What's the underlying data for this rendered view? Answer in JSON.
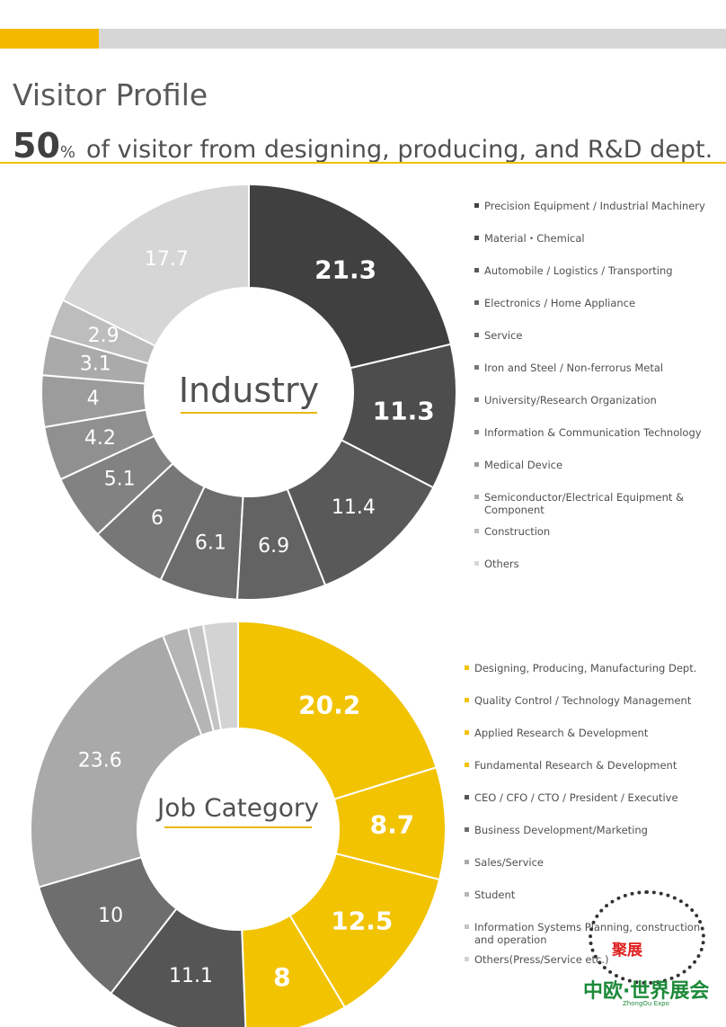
{
  "header": {
    "title": "Visitor Profile",
    "headline_big": "50",
    "headline_pct": "%",
    "headline_rest": "of visitor from designing, producing, and R&D dept."
  },
  "colors": {
    "accent": "#f5b800",
    "rule": "#f0c000",
    "gray_bar": "#d6d6d6"
  },
  "chart_data": [
    {
      "type": "pie",
      "variant": "donut",
      "center_label": "Industry",
      "categories": [
        "Precision Equipment / Industrial Machinery",
        "Material・Chemical",
        "Automobile / Logistics / Transporting",
        "Electronics / Home Appliance",
        "Service",
        "Iron and Steel / Non-ferrorus Metal",
        "University/Research Organization",
        "Information & Communication Technology",
        "Medical Device",
        "Semiconductor/Electrical Equipment & Component",
        "Construction",
        "Others"
      ],
      "values": [
        21.3,
        11.3,
        11.4,
        6.9,
        6.1,
        6,
        5.1,
        4.2,
        4,
        3.1,
        2.9,
        17.7
      ],
      "labels": [
        "21.3",
        "11.3",
        "11.4",
        "6.9",
        "6.1",
        "6",
        "5.1",
        "4.2",
        "4",
        "3.1",
        "2.9",
        "17.7"
      ],
      "colors": [
        "#404040",
        "#4d4d4d",
        "#595959",
        "#636363",
        "#6c6c6c",
        "#777777",
        "#828282",
        "#909090",
        "#9c9c9c",
        "#aaaaaa",
        "#bdbdbd",
        "#d6d6d6"
      ],
      "label_colors": [
        "#ffffff",
        "#ffffff",
        "#ffffff",
        "#ffffff",
        "#ffffff",
        "#ffffff",
        "#ffffff",
        "#ffffff",
        "#ffffff",
        "#ffffff",
        "#ffffff",
        "#ffffff"
      ],
      "label_bold": [
        true,
        true,
        false,
        false,
        false,
        false,
        false,
        false,
        false,
        false,
        false,
        false
      ],
      "legend_position": "right"
    },
    {
      "type": "pie",
      "variant": "donut",
      "center_label": "Job Category",
      "categories": [
        "Designing, Producing, Manufacturing Dept.",
        "Quality Control / Technology Management",
        "Applied Research & Development",
        "Fundamental Research & Development",
        "CEO / CFO / CTO / President / Executive",
        "Business Development/Marketing",
        "Sales/Service",
        "Student",
        "Information Systems Planning, construction and operation",
        "Others(Press/Service etc.)"
      ],
      "values": [
        20.2,
        8.7,
        12.5,
        8,
        11.1,
        10,
        23.6,
        2.0,
        1.2,
        2.7
      ],
      "labels": [
        "20.2",
        "8.7",
        "12.5",
        "8",
        "11.1",
        "10",
        "23.6",
        "",
        "",
        ""
      ],
      "colors": [
        "#f2c300",
        "#f2c300",
        "#f2c300",
        "#f2c300",
        "#555555",
        "#6e6e6e",
        "#a9a9a9",
        "#b5b5b5",
        "#c4c4c4",
        "#d3d3d3"
      ],
      "label_colors": [
        "#ffffff",
        "#ffffff",
        "#ffffff",
        "#ffffff",
        "#ffffff",
        "#ffffff",
        "#ffffff",
        "#ffffff",
        "#ffffff",
        "#ffffff"
      ],
      "label_bold": [
        true,
        true,
        true,
        true,
        false,
        false,
        false,
        false,
        false,
        false
      ],
      "legend_position": "right"
    }
  ],
  "legend1": [
    {
      "label": "Precision Equipment / Industrial Machinery",
      "color": "#404040"
    },
    {
      "label": "Material・Chemical",
      "color": "#4d4d4d"
    },
    {
      "label": "Automobile / Logistics / Transporting",
      "color": "#595959"
    },
    {
      "label": "Electronics / Home Appliance",
      "color": "#636363"
    },
    {
      "label": "Service",
      "color": "#6c6c6c"
    },
    {
      "label": "Iron and Steel / Non-ferrorus Metal",
      "color": "#777777"
    },
    {
      "label": "University/Research Organization",
      "color": "#828282"
    },
    {
      "label": "Information & Communication Technology",
      "color": "#909090"
    },
    {
      "label": "Medical Device",
      "color": "#9c9c9c"
    },
    {
      "label": "Semiconductor/Electrical Equipment & Component",
      "color": "#aaaaaa"
    },
    {
      "label": "Construction",
      "color": "#bdbdbd"
    },
    {
      "label": "Others",
      "color": "#d6d6d6"
    }
  ],
  "legend2": [
    {
      "label": "Designing, Producing, Manufacturing Dept.",
      "color": "#f2c300"
    },
    {
      "label": "Quality Control / Technology Management",
      "color": "#f2c300"
    },
    {
      "label": "Applied Research & Development",
      "color": "#f2c300"
    },
    {
      "label": "Fundamental Research & Development",
      "color": "#f2c300"
    },
    {
      "label": "CEO / CFO / CTO / President / Executive",
      "color": "#555555"
    },
    {
      "label": "Business Development/Marketing",
      "color": "#6e6e6e"
    },
    {
      "label": "Sales/Service",
      "color": "#a9a9a9"
    },
    {
      "label": "Student",
      "color": "#b5b5b5"
    },
    {
      "label": "Information Systems Planning, construction and operation",
      "color": "#c4c4c4"
    },
    {
      "label": "Others(Press/Service etc.)",
      "color": "#d3d3d3"
    }
  ],
  "watermark": {
    "mid_text": "聚展",
    "name": "中欧·世界展会",
    "sub": "ZhongOu Expo"
  }
}
